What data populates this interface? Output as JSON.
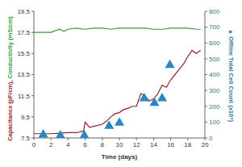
{
  "chart_data": {
    "type": "line",
    "xlabel": "Time (days)",
    "ylabel": "Capacitance (pF/cm), Conductivity (mS/cm)",
    "y2label": "▲ Offline Total Cell Count (x10⁹)",
    "xlim": [
      0,
      20
    ],
    "xticks": [
      0,
      2,
      4,
      6,
      8,
      10,
      12,
      14,
      16,
      18,
      20
    ],
    "ylim": [
      7.5,
      19.5
    ],
    "yticks": [
      7.5,
      9.5,
      11.5,
      13.5,
      15.5,
      17.5,
      19.5
    ],
    "y2lim": [
      0,
      800
    ],
    "y2ticks": [
      0,
      100,
      200,
      300,
      400,
      500,
      600,
      700,
      800
    ],
    "grid": false,
    "series": [
      {
        "name": "Capacitance (pF/cm)",
        "color": "#9b1b30",
        "type": "line",
        "x": [
          0,
          1,
          2,
          3,
          4,
          5,
          5.5,
          5.8,
          6.0,
          6.5,
          7,
          8,
          8.5,
          9,
          9.5,
          10,
          10.5,
          11,
          11.5,
          12,
          12.5,
          13,
          13.5,
          14,
          14.5,
          15,
          15.5,
          16,
          16.5,
          17,
          17.5,
          18,
          18.5,
          19,
          19.5
        ],
        "values": [
          7.9,
          7.9,
          7.9,
          7.95,
          8.0,
          8.0,
          8.1,
          8.1,
          9.0,
          8.5,
          8.6,
          8.8,
          9.1,
          9.5,
          9.8,
          9.9,
          10.2,
          10.3,
          10.5,
          10.5,
          11.7,
          11.5,
          11.0,
          11.2,
          11.7,
          12.5,
          12.3,
          13.0,
          13.5,
          14.0,
          14.5,
          15.2,
          15.8,
          15.5,
          15.8
        ]
      },
      {
        "name": "Conductivity (mS/cm)",
        "color": "#3a9a3a",
        "type": "line",
        "x": [
          0,
          1,
          2,
          3,
          3.5,
          4,
          5,
          6,
          7,
          8,
          9,
          10,
          11,
          12,
          13,
          14,
          15,
          16,
          17,
          18,
          19,
          19.5
        ],
        "values": [
          17.5,
          17.5,
          17.5,
          17.8,
          17.6,
          17.8,
          17.9,
          17.8,
          17.9,
          17.9,
          17.8,
          17.9,
          17.9,
          17.9,
          17.9,
          17.8,
          17.8,
          17.9,
          17.9,
          17.9,
          17.8,
          17.8
        ]
      },
      {
        "name": "Offline Total Cell Count",
        "color": "#2e86c1",
        "type": "scatter",
        "marker": "triangle",
        "axis": "y2",
        "x": [
          1.1,
          3.1,
          5.9,
          8.8,
          10,
          12.9,
          14.1,
          15,
          15.9
        ],
        "values": [
          20,
          15,
          15,
          75,
          95,
          250,
          220,
          250,
          460
        ]
      }
    ]
  }
}
